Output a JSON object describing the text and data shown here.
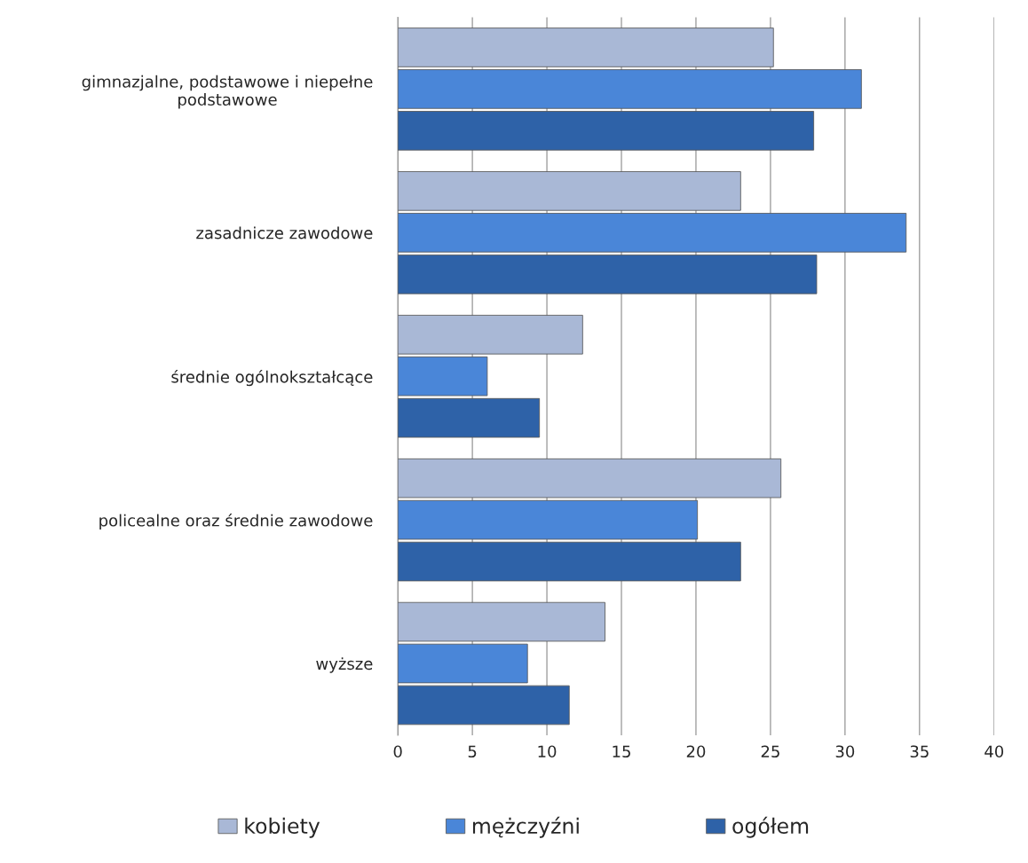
{
  "chart_data": {
    "type": "bar",
    "orientation": "horizontal",
    "categories": [
      "gimnazjalne, podstawowe i niepełne\npodstawowe",
      "zasadnicze zawodowe",
      "średnie ogólnokształcące",
      "policealne oraz średnie zawodowe",
      "wyższe"
    ],
    "series": [
      {
        "name": "kobiety",
        "color": "#a9b8d6",
        "values": [
          25.2,
          23.0,
          12.4,
          25.7,
          13.9
        ]
      },
      {
        "name": "mężczyźni",
        "color": "#4a86d8",
        "values": [
          31.1,
          34.1,
          6.0,
          20.1,
          8.7
        ]
      },
      {
        "name": "ogółem",
        "color": "#2e62a8",
        "values": [
          27.9,
          28.1,
          9.5,
          23.0,
          11.5
        ]
      }
    ],
    "xlim": [
      0,
      40
    ],
    "xticks": [
      0,
      5,
      10,
      15,
      20,
      25,
      30,
      35,
      40
    ],
    "grid": "x",
    "legend": "bottom"
  }
}
